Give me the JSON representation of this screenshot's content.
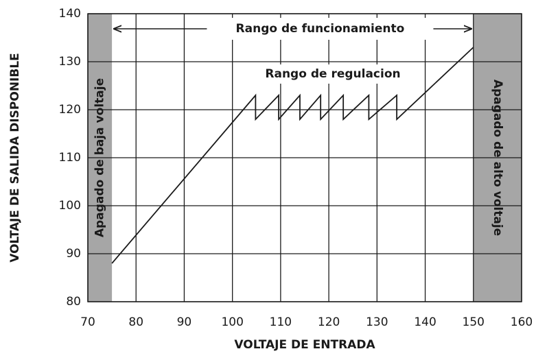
{
  "chart_data": {
    "type": "line",
    "x_label": "VOLTAJE DE ENTRADA",
    "y_label": "VOLTAJE DE SALIDA DISPONIBLE",
    "x": [
      75,
      104.8,
      104.8,
      109.6,
      109.6,
      114,
      114,
      118.3,
      118.3,
      123,
      123,
      128.3,
      128.3,
      134.1,
      134.1,
      150
    ],
    "values": [
      88,
      123,
      118,
      123,
      118,
      123,
      118,
      123,
      118,
      123,
      118,
      123,
      118,
      123,
      118,
      133
    ],
    "color": "#1a1a1a",
    "xlim": [
      70,
      160
    ],
    "ylim": [
      80,
      140
    ],
    "xticks": [
      70,
      80,
      90,
      100,
      110,
      120,
      130,
      140,
      150,
      160
    ],
    "yticks": [
      80,
      90,
      100,
      110,
      120,
      130,
      140
    ],
    "grid": true,
    "regions": [
      {
        "x": [
          70,
          75
        ],
        "label": "Apagado de baja voltaje",
        "color": "#a6a6a6"
      },
      {
        "x": [
          150,
          160
        ],
        "label": "Apagado de alto voltaje",
        "color": "#a6a6a6"
      }
    ],
    "annotations": [
      "Rango de funcionamiento",
      "Rango de regulacion"
    ]
  }
}
